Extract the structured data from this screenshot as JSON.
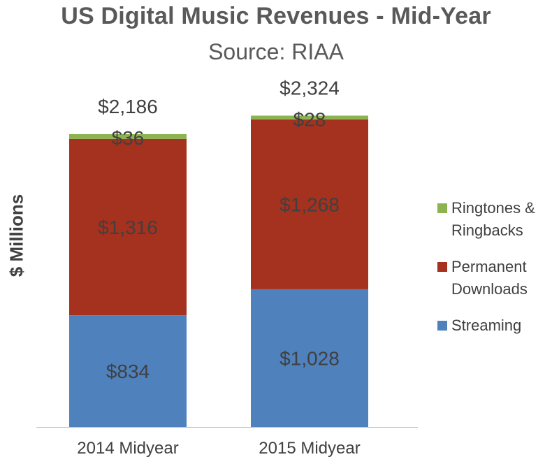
{
  "title": "US Digital Music Revenues - Mid-Year",
  "subtitle": "Source: RIAA",
  "ylabel": "$ Millions",
  "colors": {
    "streaming": "#4f81bd",
    "downloads": "#a5311f",
    "ringtones": "#8db350"
  },
  "legend": [
    {
      "label_line1": "Ringtones &",
      "label_line2": "Ringbacks",
      "color": "#8db350"
    },
    {
      "label_line1": "Permanent",
      "label_line2": "Downloads",
      "color": "#a5311f"
    },
    {
      "label_line1": "Streaming",
      "label_line2": "",
      "color": "#4f81bd"
    }
  ],
  "chart_data": {
    "type": "bar",
    "stacked": true,
    "categories": [
      "2014 Midyear",
      "2015 Midyear"
    ],
    "series": [
      {
        "name": "Streaming",
        "values": [
          834,
          1028
        ],
        "labels": [
          "$834",
          "$1,028"
        ],
        "color": "#4f81bd"
      },
      {
        "name": "Permanent Downloads",
        "values": [
          1316,
          1268
        ],
        "labels": [
          "$1,316",
          "$1,268"
        ],
        "color": "#a5311f"
      },
      {
        "name": "Ringtones & Ringbacks",
        "values": [
          36,
          28
        ],
        "labels": [
          "$36",
          "$28"
        ],
        "color": "#8db350"
      }
    ],
    "totals": [
      2186,
      2324
    ],
    "total_labels": [
      "$2,186",
      "$2,324"
    ],
    "title": "US Digital Music Revenues - Mid-Year",
    "subtitle": "Source: RIAA",
    "xlabel": "",
    "ylabel": "$ Millions",
    "ylim": [
      0,
      2550
    ],
    "grid": false,
    "legend_position": "right"
  }
}
